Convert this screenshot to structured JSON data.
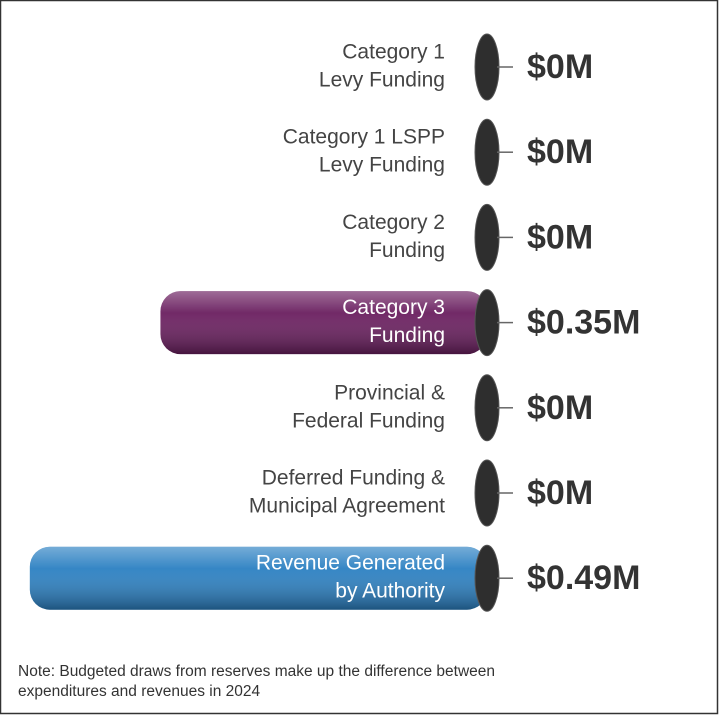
{
  "chart_data": {
    "type": "bar",
    "orientation": "horizontal",
    "categories": [
      [
        "Category 1",
        "Levy Funding"
      ],
      [
        "Category 1 LSPP",
        "Levy Funding"
      ],
      [
        "Category 2",
        "Funding"
      ],
      [
        "Category 3",
        "Funding"
      ],
      [
        "Provincial &",
        "Federal Funding"
      ],
      [
        "Deferred Funding &",
        "Municipal Agreement"
      ],
      [
        "Revenue Generated",
        "by Authority"
      ]
    ],
    "values": [
      0,
      0,
      0,
      0.35,
      0,
      0,
      0.49
    ],
    "value_labels": [
      "$0M",
      "$0M",
      "$0M",
      "$0.35M",
      "$0M",
      "$0M",
      "$0.49M"
    ],
    "colors": [
      "#333333",
      "#333333",
      "#333333",
      "#6a1e5f",
      "#2b80c2"
    ],
    "note": [
      "Note: Budgeted draws from reserves make up the difference between",
      "expenditures and revenues in 2024"
    ]
  }
}
